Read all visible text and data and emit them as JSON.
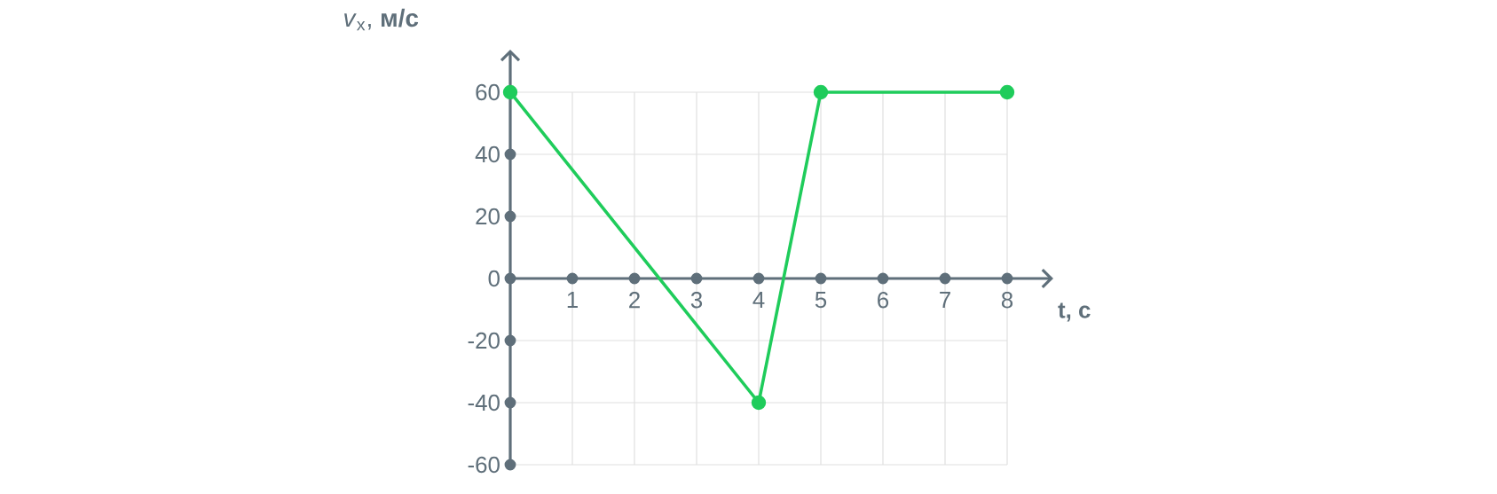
{
  "chart_data": {
    "type": "line",
    "xlabel": "t, с",
    "ylabel": "*v*$_{x}$, **м/с**",
    "x": [
      0,
      4,
      5,
      8
    ],
    "values": [
      60,
      -40,
      60,
      60
    ],
    "color": "#1fcc5b",
    "marker": "circle",
    "xlim": [
      0,
      8
    ],
    "ylim": [
      -60,
      60
    ],
    "xticks": [
      1,
      2,
      3,
      4,
      5,
      6,
      7,
      8
    ],
    "yticks": [
      -60,
      -40,
      -20,
      0,
      20,
      40,
      60
    ],
    "grid": true
  }
}
